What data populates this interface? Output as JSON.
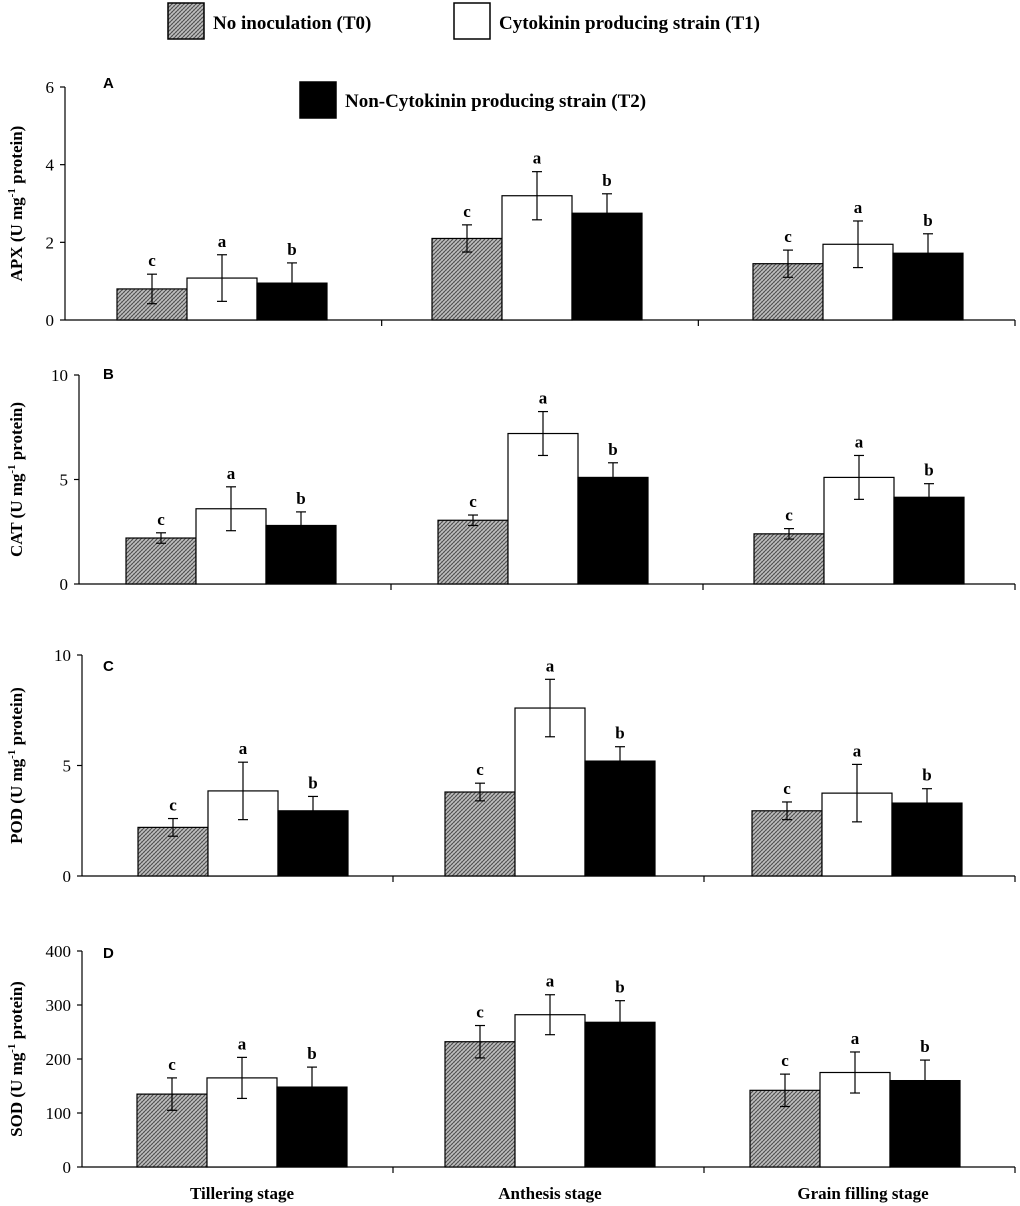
{
  "legend": [
    {
      "label": "No inoculation (T0)",
      "fill": "hatched"
    },
    {
      "label": "Cytokinin producing strain (T1)",
      "fill": "white"
    },
    {
      "label": "Non-Cytokinin producing strain (T2)",
      "fill": "black"
    }
  ],
  "colors": {
    "t0_base": "#bdbdbd",
    "t0_hatch": "#555555",
    "t1": "#ffffff",
    "t2": "#000000",
    "axis": "#000000"
  },
  "chart_data": [
    {
      "type": "bar",
      "panel": "A",
      "ylabel": "APX (U mg-1 protein)",
      "ylabel_base": "APX (U mg",
      "ylabel_sup": "-1",
      "ylabel_tail": " protein)",
      "ylim": [
        0,
        6
      ],
      "yticks": [
        0,
        2,
        4,
        6
      ],
      "categories": [
        "Tillering stage",
        "Anthesis stage",
        "Grain filling stage"
      ],
      "series": [
        {
          "name": "No inoculation (T0)",
          "values": [
            0.8,
            2.1,
            1.45
          ],
          "errors": [
            0.38,
            0.35,
            0.35
          ],
          "letters": [
            "c",
            "c",
            "c"
          ]
        },
        {
          "name": "Cytokinin producing strain (T1)",
          "values": [
            1.08,
            3.2,
            1.95
          ],
          "errors": [
            0.6,
            0.62,
            0.6
          ],
          "letters": [
            "a",
            "a",
            "a"
          ]
        },
        {
          "name": "Non-Cytokinin producing strain (T2)",
          "values": [
            0.95,
            2.75,
            1.72
          ],
          "errors": [
            0.52,
            0.5,
            0.5
          ],
          "letters": [
            "b",
            "b",
            "b"
          ]
        }
      ]
    },
    {
      "type": "bar",
      "panel": "B",
      "ylabel": "CAT (U mg-1 protein)",
      "ylabel_base": "CAT (U mg",
      "ylabel_sup": "-1",
      "ylabel_tail": " protein)",
      "ylim": [
        0,
        10
      ],
      "yticks": [
        0,
        5,
        10
      ],
      "categories": [
        "Tillering stage",
        "Anthesis stage",
        "Grain filling stage"
      ],
      "series": [
        {
          "name": "No inoculation (T0)",
          "values": [
            2.2,
            3.05,
            2.4
          ],
          "errors": [
            0.25,
            0.25,
            0.25
          ],
          "letters": [
            "c",
            "c",
            "c"
          ]
        },
        {
          "name": "Cytokinin producing strain (T1)",
          "values": [
            3.6,
            7.2,
            5.1
          ],
          "errors": [
            1.05,
            1.05,
            1.05
          ],
          "letters": [
            "a",
            "a",
            "a"
          ]
        },
        {
          "name": "Non-Cytokinin producing strain (T2)",
          "values": [
            2.8,
            5.1,
            4.15
          ],
          "errors": [
            0.65,
            0.7,
            0.65
          ],
          "letters": [
            "b",
            "b",
            "b"
          ]
        }
      ]
    },
    {
      "type": "bar",
      "panel": "C",
      "ylabel": "POD (U mg-1 protein)",
      "ylabel_base": "POD (U mg",
      "ylabel_sup": "-1",
      "ylabel_tail": " protein)",
      "ylim": [
        0,
        10
      ],
      "yticks": [
        0,
        5,
        10
      ],
      "categories": [
        "Tillering stage",
        "Anthesis stage",
        "Grain filling stage"
      ],
      "series": [
        {
          "name": "No inoculation (T0)",
          "values": [
            2.2,
            3.8,
            2.95
          ],
          "errors": [
            0.4,
            0.4,
            0.4
          ],
          "letters": [
            "c",
            "c",
            "c"
          ]
        },
        {
          "name": "Cytokinin producing strain (T1)",
          "values": [
            3.85,
            7.6,
            3.75
          ],
          "errors": [
            1.3,
            1.3,
            1.3
          ],
          "letters": [
            "a",
            "a",
            "a"
          ]
        },
        {
          "name": "Non-Cytokinin producing strain (T2)",
          "values": [
            2.95,
            5.2,
            3.3
          ],
          "errors": [
            0.65,
            0.65,
            0.65
          ],
          "letters": [
            "b",
            "b",
            "b"
          ]
        }
      ]
    },
    {
      "type": "bar",
      "panel": "D",
      "ylabel": "SOD (U mg-1 protein)",
      "ylabel_base": "SOD (U mg",
      "ylabel_sup": "-1",
      "ylabel_tail": " protein)",
      "ylim": [
        0,
        400
      ],
      "yticks": [
        0,
        100,
        200,
        300,
        400
      ],
      "categories": [
        "Tillering stage",
        "Anthesis stage",
        "Grain filling stage"
      ],
      "show_xlabels": true,
      "series": [
        {
          "name": "No inoculation (T0)",
          "values": [
            135,
            232,
            142
          ],
          "errors": [
            30,
            30,
            30
          ],
          "letters": [
            "c",
            "c",
            "c"
          ]
        },
        {
          "name": "Cytokinin producing strain (T1)",
          "values": [
            165,
            282,
            175
          ],
          "errors": [
            38,
            37,
            38
          ],
          "letters": [
            "a",
            "a",
            "a"
          ]
        },
        {
          "name": "Non-Cytokinin producing strain (T2)",
          "values": [
            148,
            268,
            160
          ],
          "errors": [
            37,
            40,
            38
          ],
          "letters": [
            "b",
            "b",
            "b"
          ]
        }
      ]
    }
  ]
}
